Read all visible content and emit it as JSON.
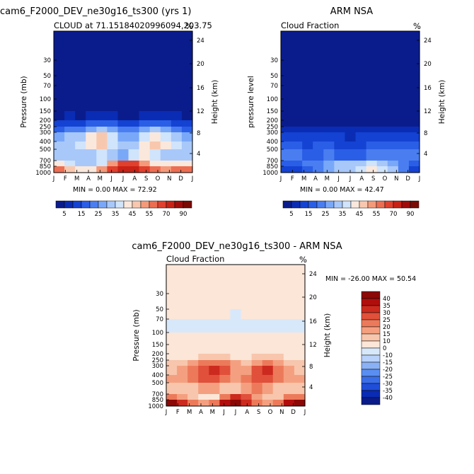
{
  "months": [
    "J",
    "F",
    "M",
    "A",
    "M",
    "J",
    "J",
    "A",
    "S",
    "O",
    "N",
    "D",
    "J"
  ],
  "pressure_ticks": [
    "30",
    "50",
    "70",
    "100",
    "150",
    "200",
    "250",
    "300",
    "400",
    "500",
    "700",
    "850",
    "1000"
  ],
  "height_ticks": [
    "24",
    "20",
    "16",
    "12",
    "8",
    "4"
  ],
  "percent_label": "%",
  "colors": {
    "seq": [
      "#0a1c8c",
      "#0a2cb4",
      "#1442d2",
      "#2a5ee6",
      "#4a7ef0",
      "#7aa8f8",
      "#a8c8fa",
      "#d0e4fb",
      "#fbe8dc",
      "#f8c8ae",
      "#f49a7a",
      "#ec6e52",
      "#e0402e",
      "#c82216",
      "#a00c0a",
      "#7a0a04"
    ],
    "div": [
      "#0a1c8c",
      "#0a2cb4",
      "#1f4ed8",
      "#3a6ee8",
      "#5a8ef0",
      "#8ab0f6",
      "#b8d2fa",
      "#d8e8fb",
      "#fbe6d8",
      "#f8c6ac",
      "#f4a080",
      "#ec7a5a",
      "#e0503a",
      "#cc2a1e",
      "#b00e0c",
      "#8a0806"
    ]
  },
  "panels": {
    "model": {
      "title": "cam6_F2000_DEV_ne30g16_ts300 (yrs 1)",
      "subtitle": "CLOUD at 71.15184020996094,203.75",
      "ylabel_left": "Pressure (mb)",
      "ylabel_right": "Height (km)",
      "stats": "MIN =    0.00 MAX =   72.92"
    },
    "obs": {
      "title": "ARM NSA",
      "subtitle": "Cloud Fraction",
      "ylabel_left": "pressure level",
      "ylabel_right": "Height (km)",
      "stats": "MIN =    0.00 MAX =   42.47"
    },
    "diff": {
      "title": "cam6_F2000_DEV_ne30g16_ts300 - ARM NSA",
      "subtitle": "Cloud Fraction",
      "ylabel_left": "Pressure (mb)",
      "ylabel_right": "Height (km)",
      "stats": "MIN = -26.00 MAX =   50.54"
    }
  },
  "colorbar_seq": {
    "labels": [
      "5",
      "15",
      "25",
      "35",
      "45",
      "55",
      "70",
      "90"
    ]
  },
  "colorbar_div": {
    "labels": [
      "40",
      "35",
      "30",
      "25",
      "20",
      "15",
      "10",
      "0",
      "-10",
      "-15",
      "-20",
      "-25",
      "-30",
      "-35",
      "-40"
    ]
  },
  "chart_data": [
    {
      "type": "heatmap",
      "title": "cam6_F2000_DEV_ne30g16_ts300 (yrs 1)",
      "subtitle": "CLOUD at 71.15184020996094,203.75",
      "xlabel": "",
      "ylabel": "Pressure (mb)",
      "ylabel_right": "Height (km)",
      "x_categories": [
        "J",
        "F",
        "M",
        "A",
        "M",
        "J",
        "J",
        "A",
        "S",
        "O",
        "N",
        "D",
        "J"
      ],
      "y_levels_mb": [
        1000,
        850,
        700,
        500,
        400,
        300,
        250,
        200,
        150,
        100,
        70,
        50,
        30
      ],
      "values": [
        [
          55,
          48,
          42,
          40,
          50,
          65,
          72,
          70,
          62,
          55,
          52,
          56,
          55
        ],
        [
          40,
          36,
          32,
          30,
          35,
          50,
          62,
          60,
          52,
          44,
          40,
          42,
          40
        ],
        [
          32,
          30,
          30,
          34,
          38,
          30,
          28,
          36,
          40,
          38,
          34,
          32,
          32
        ],
        [
          34,
          34,
          36,
          42,
          45,
          38,
          30,
          34,
          44,
          46,
          40,
          36,
          34
        ],
        [
          28,
          30,
          34,
          40,
          45,
          36,
          26,
          28,
          38,
          44,
          38,
          30,
          28
        ],
        [
          18,
          20,
          22,
          28,
          30,
          26,
          20,
          20,
          26,
          30,
          26,
          20,
          18
        ],
        [
          10,
          12,
          12,
          16,
          18,
          16,
          12,
          12,
          16,
          18,
          15,
          12,
          10
        ],
        [
          4,
          5,
          4,
          6,
          7,
          6,
          4,
          4,
          6,
          7,
          6,
          5,
          4
        ],
        [
          1,
          1,
          1,
          1,
          1,
          1,
          1,
          1,
          1,
          1,
          1,
          1,
          1
        ],
        [
          0,
          0,
          0,
          0,
          0,
          0,
          0,
          0,
          0,
          0,
          0,
          0,
          0
        ],
        [
          0,
          0,
          0,
          0,
          0,
          0,
          0,
          0,
          0,
          0,
          0,
          0,
          0
        ],
        [
          0,
          0,
          0,
          0,
          0,
          0,
          0,
          0,
          0,
          0,
          0,
          0,
          0
        ],
        [
          0,
          0,
          0,
          0,
          0,
          0,
          0,
          0,
          0,
          0,
          0,
          0,
          0
        ]
      ],
      "stats": {
        "min": 0.0,
        "max": 72.92
      },
      "colorbar_levels": [
        5,
        15,
        25,
        35,
        45,
        55,
        70,
        90
      ]
    },
    {
      "type": "heatmap",
      "title": "ARM NSA",
      "subtitle": "Cloud Fraction",
      "xlabel": "",
      "ylabel": "pressure level",
      "ylabel_right": "Height (km)",
      "x_categories": [
        "J",
        "F",
        "M",
        "A",
        "M",
        "J",
        "J",
        "A",
        "S",
        "O",
        "N",
        "D",
        "J"
      ],
      "y_levels_mb": [
        1000,
        850,
        700,
        500,
        400,
        300,
        250,
        200,
        150,
        100,
        70,
        50,
        30
      ],
      "values": [
        [
          10,
          14,
          18,
          22,
          26,
          30,
          34,
          38,
          42,
          38,
          30,
          20,
          10
        ],
        [
          16,
          18,
          20,
          24,
          28,
          30,
          32,
          34,
          36,
          32,
          26,
          20,
          16
        ],
        [
          20,
          20,
          18,
          18,
          20,
          16,
          16,
          18,
          20,
          22,
          22,
          20,
          20
        ],
        [
          18,
          16,
          14,
          16,
          18,
          14,
          12,
          14,
          16,
          18,
          18,
          18,
          18
        ],
        [
          14,
          12,
          10,
          12,
          14,
          10,
          9,
          10,
          12,
          14,
          14,
          14,
          14
        ],
        [
          8,
          7,
          6,
          7,
          8,
          6,
          5,
          6,
          7,
          8,
          8,
          8,
          8
        ],
        [
          4,
          3,
          3,
          3,
          4,
          3,
          3,
          3,
          3,
          4,
          4,
          4,
          4
        ],
        [
          1,
          1,
          1,
          1,
          1,
          1,
          1,
          1,
          1,
          1,
          1,
          1,
          1
        ],
        [
          0,
          0,
          0,
          0,
          0,
          0,
          0,
          0,
          0,
          0,
          0,
          0,
          0
        ],
        [
          0,
          0,
          0,
          0,
          0,
          0,
          0,
          0,
          0,
          0,
          0,
          0,
          0
        ],
        [
          0,
          0,
          0,
          0,
          0,
          0,
          0,
          0,
          0,
          0,
          0,
          0,
          0
        ],
        [
          0,
          0,
          0,
          0,
          0,
          0,
          0,
          0,
          0,
          0,
          0,
          0,
          0
        ],
        [
          0,
          0,
          0,
          0,
          0,
          0,
          0,
          0,
          0,
          0,
          0,
          0,
          0
        ]
      ],
      "stats": {
        "min": 0.0,
        "max": 42.47
      },
      "colorbar_levels": [
        5,
        15,
        25,
        35,
        45,
        55,
        70,
        90
      ]
    },
    {
      "type": "heatmap",
      "title": "cam6_F2000_DEV_ne30g16_ts300 - ARM NSA",
      "subtitle": "Cloud Fraction",
      "xlabel": "",
      "ylabel": "Pressure (mb)",
      "ylabel_right": "Height (km)",
      "x_categories": [
        "J",
        "F",
        "M",
        "A",
        "M",
        "J",
        "J",
        "A",
        "S",
        "O",
        "N",
        "D",
        "J"
      ],
      "y_levels_mb": [
        1000,
        850,
        700,
        500,
        400,
        300,
        250,
        200,
        150,
        100,
        70,
        50,
        30
      ],
      "values": [
        [
          40,
          34,
          24,
          18,
          24,
          35,
          40,
          32,
          20,
          17,
          22,
          36,
          40
        ],
        [
          24,
          18,
          12,
          6,
          7,
          20,
          30,
          26,
          16,
          12,
          14,
          22,
          24
        ],
        [
          12,
          10,
          12,
          16,
          18,
          14,
          12,
          18,
          20,
          16,
          12,
          12,
          12
        ],
        [
          16,
          18,
          22,
          26,
          27,
          24,
          18,
          20,
          28,
          28,
          22,
          18,
          16
        ],
        [
          14,
          18,
          24,
          28,
          31,
          26,
          17,
          18,
          26,
          30,
          24,
          16,
          14
        ],
        [
          10,
          13,
          16,
          21,
          22,
          20,
          15,
          14,
          19,
          22,
          18,
          12,
          10
        ],
        [
          6,
          9,
          9,
          13,
          14,
          13,
          9,
          9,
          13,
          14,
          11,
          8,
          6
        ],
        [
          3,
          4,
          3,
          5,
          6,
          5,
          3,
          3,
          5,
          6,
          5,
          4,
          3
        ],
        [
          1,
          1,
          1,
          1,
          1,
          1,
          1,
          1,
          1,
          1,
          1,
          1,
          1
        ],
        [
          -2,
          -2,
          -3,
          -3,
          -3,
          -2,
          -3,
          -3,
          -2,
          -3,
          -3,
          -2,
          -2
        ],
        [
          1,
          1,
          1,
          1,
          1,
          1,
          -2,
          1,
          1,
          1,
          1,
          1,
          1
        ],
        [
          2,
          2,
          2,
          2,
          2,
          2,
          2,
          2,
          2,
          2,
          2,
          2,
          2
        ],
        [
          2,
          2,
          2,
          2,
          2,
          2,
          2,
          2,
          2,
          2,
          2,
          2,
          2
        ]
      ],
      "stats": {
        "min": -26.0,
        "max": 50.54
      },
      "colorbar_levels": [
        -40,
        -35,
        -30,
        -25,
        -20,
        -15,
        -10,
        0,
        10,
        15,
        20,
        25,
        30,
        35,
        40
      ]
    }
  ]
}
